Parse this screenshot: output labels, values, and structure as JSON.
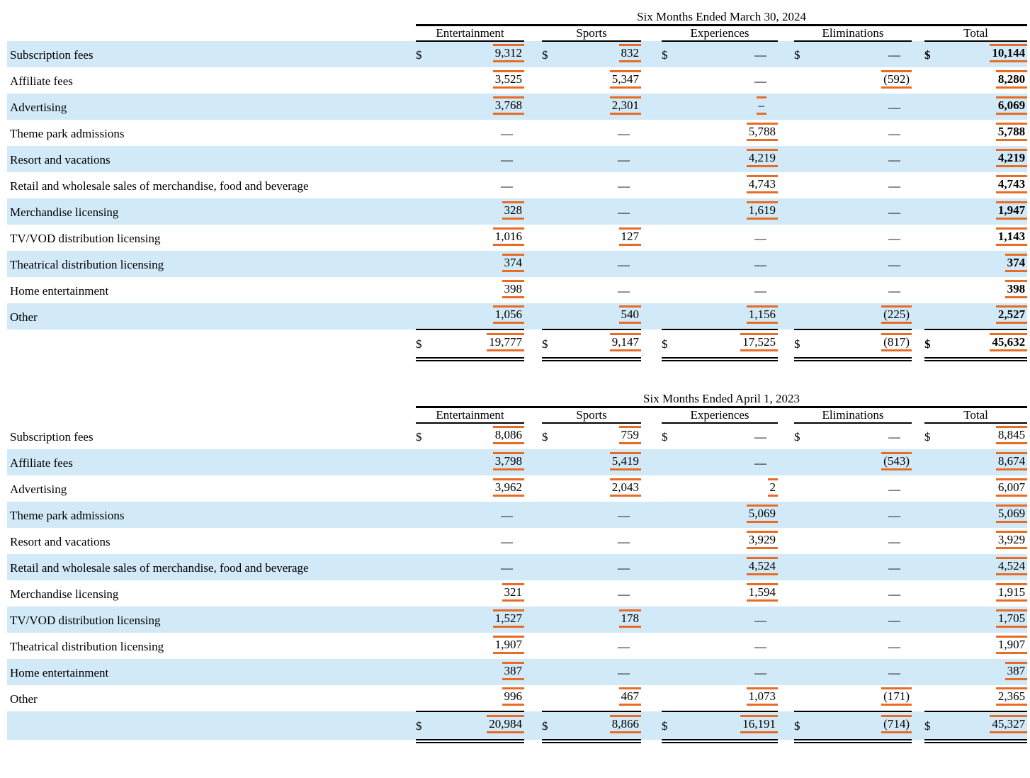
{
  "colors": {
    "stripe_blue": "#d2e9f7",
    "tag_orange": "#e86c25",
    "rule_black": "#000000"
  },
  "column_headers": [
    "Entertainment",
    "Sports",
    "Experiences",
    "Eliminations",
    "Total"
  ],
  "tables": [
    {
      "title": "Six Months Ended March 30, 2024",
      "stripe_phase": 0,
      "total_striped": false,
      "rows": [
        {
          "label": "Subscription fees",
          "cells": [
            {
              "dollar": "$",
              "value": "9,312",
              "tagged": true
            },
            {
              "dollar": "$",
              "value": "832",
              "tagged": true
            },
            {
              "dollar": "$",
              "value": "—",
              "dash": true
            },
            {
              "dollar": "$",
              "value": "—",
              "dash": true
            },
            {
              "dollar": "$",
              "value": "10,144",
              "tagged": true,
              "bold": true
            }
          ]
        },
        {
          "label": "Affiliate fees",
          "cells": [
            {
              "value": "3,525",
              "tagged": true
            },
            {
              "value": "5,347",
              "tagged": true
            },
            {
              "value": "—",
              "dash": true
            },
            {
              "value": "(592)",
              "tagged": true
            },
            {
              "value": "8,280",
              "tagged": true,
              "bold": true
            }
          ]
        },
        {
          "label": "Advertising",
          "cells": [
            {
              "value": "3,768",
              "tagged": true
            },
            {
              "value": "2,301",
              "tagged": true
            },
            {
              "value": "–",
              "tagged": true,
              "dash": true
            },
            {
              "value": "—",
              "dash": true
            },
            {
              "value": "6,069",
              "tagged": true,
              "bold": true
            }
          ]
        },
        {
          "label": "Theme park admissions",
          "cells": [
            {
              "value": "—",
              "dash": true
            },
            {
              "value": "—",
              "dash": true
            },
            {
              "value": "5,788",
              "tagged": true
            },
            {
              "value": "—",
              "dash": true
            },
            {
              "value": "5,788",
              "tagged": true,
              "bold": true
            }
          ]
        },
        {
          "label": "Resort and vacations",
          "cells": [
            {
              "value": "—",
              "dash": true
            },
            {
              "value": "—",
              "dash": true
            },
            {
              "value": "4,219",
              "tagged": true
            },
            {
              "value": "—",
              "dash": true
            },
            {
              "value": "4,219",
              "tagged": true,
              "bold": true
            }
          ]
        },
        {
          "label": "Retail and wholesale sales of merchandise, food and beverage",
          "cells": [
            {
              "value": "—",
              "dash": true
            },
            {
              "value": "—",
              "dash": true
            },
            {
              "value": "4,743",
              "tagged": true
            },
            {
              "value": "—",
              "dash": true
            },
            {
              "value": "4,743",
              "tagged": true,
              "bold": true
            }
          ]
        },
        {
          "label": "Merchandise licensing",
          "cells": [
            {
              "value": "328",
              "tagged": true
            },
            {
              "value": "—",
              "dash": true
            },
            {
              "value": "1,619",
              "tagged": true
            },
            {
              "value": "—",
              "dash": true
            },
            {
              "value": "1,947",
              "tagged": true,
              "bold": true
            }
          ]
        },
        {
          "label": "TV/VOD distribution licensing",
          "cells": [
            {
              "value": "1,016",
              "tagged": true
            },
            {
              "value": "127",
              "tagged": true
            },
            {
              "value": "—",
              "dash": true
            },
            {
              "value": "—",
              "dash": true
            },
            {
              "value": "1,143",
              "tagged": true,
              "bold": true
            }
          ]
        },
        {
          "label": "Theatrical distribution licensing",
          "cells": [
            {
              "value": "374",
              "tagged": true
            },
            {
              "value": "—",
              "dash": true
            },
            {
              "value": "—",
              "dash": true
            },
            {
              "value": "—",
              "dash": true
            },
            {
              "value": "374",
              "tagged": true,
              "bold": true
            }
          ]
        },
        {
          "label": "Home entertainment",
          "cells": [
            {
              "value": "398",
              "tagged": true
            },
            {
              "value": "—",
              "dash": true
            },
            {
              "value": "—",
              "dash": true
            },
            {
              "value": "—",
              "dash": true
            },
            {
              "value": "398",
              "tagged": true,
              "bold": true
            }
          ]
        },
        {
          "label": "Other",
          "cells": [
            {
              "value": "1,056",
              "tagged": true
            },
            {
              "value": "540",
              "tagged": true
            },
            {
              "value": "1,156",
              "tagged": true
            },
            {
              "value": "(225)",
              "tagged": true
            },
            {
              "value": "2,527",
              "tagged": true,
              "bold": true
            }
          ]
        }
      ],
      "total_row": {
        "cells": [
          {
            "dollar": "$",
            "value": "19,777",
            "tagged": true
          },
          {
            "dollar": "$",
            "value": "9,147",
            "tagged": true
          },
          {
            "dollar": "$",
            "value": "17,525",
            "tagged": true
          },
          {
            "dollar": "$",
            "value": "(817)",
            "tagged": true
          },
          {
            "dollar": "$",
            "value": "45,632",
            "tagged": true,
            "bold": true
          }
        ]
      }
    },
    {
      "title": "Six Months Ended April 1, 2023",
      "stripe_phase": 1,
      "total_striped": true,
      "rows": [
        {
          "label": "Subscription fees",
          "cells": [
            {
              "dollar": "$",
              "value": "8,086",
              "tagged": true
            },
            {
              "dollar": "$",
              "value": "759",
              "tagged": true
            },
            {
              "dollar": "$",
              "value": "—",
              "dash": true
            },
            {
              "dollar": "$",
              "value": "—",
              "dash": true
            },
            {
              "dollar": "$",
              "value": "8,845",
              "tagged": true
            }
          ]
        },
        {
          "label": "Affiliate fees",
          "cells": [
            {
              "value": "3,798",
              "tagged": true
            },
            {
              "value": "5,419",
              "tagged": true
            },
            {
              "value": "—",
              "dash": true
            },
            {
              "value": "(543)",
              "tagged": true
            },
            {
              "value": "8,674",
              "tagged": true
            }
          ]
        },
        {
          "label": "Advertising",
          "cells": [
            {
              "value": "3,962",
              "tagged": true
            },
            {
              "value": "2,043",
              "tagged": true
            },
            {
              "value": "2",
              "tagged": true
            },
            {
              "value": "—",
              "dash": true
            },
            {
              "value": "6,007",
              "tagged": true
            }
          ]
        },
        {
          "label": "Theme park admissions",
          "cells": [
            {
              "value": "—",
              "dash": true
            },
            {
              "value": "—",
              "dash": true
            },
            {
              "value": "5,069",
              "tagged": true
            },
            {
              "value": "—",
              "dash": true
            },
            {
              "value": "5,069",
              "tagged": true
            }
          ]
        },
        {
          "label": "Resort and vacations",
          "cells": [
            {
              "value": "—",
              "dash": true
            },
            {
              "value": "—",
              "dash": true
            },
            {
              "value": "3,929",
              "tagged": true
            },
            {
              "value": "—",
              "dash": true
            },
            {
              "value": "3,929",
              "tagged": true
            }
          ]
        },
        {
          "label": "Retail and wholesale sales of merchandise, food and beverage",
          "cells": [
            {
              "value": "—",
              "dash": true
            },
            {
              "value": "—",
              "dash": true
            },
            {
              "value": "4,524",
              "tagged": true
            },
            {
              "value": "—",
              "dash": true
            },
            {
              "value": "4,524",
              "tagged": true
            }
          ]
        },
        {
          "label": "Merchandise licensing",
          "cells": [
            {
              "value": "321",
              "tagged": true
            },
            {
              "value": "—",
              "dash": true
            },
            {
              "value": "1,594",
              "tagged": true
            },
            {
              "value": "—",
              "dash": true
            },
            {
              "value": "1,915",
              "tagged": true
            }
          ]
        },
        {
          "label": "TV/VOD distribution licensing",
          "cells": [
            {
              "value": "1,527",
              "tagged": true
            },
            {
              "value": "178",
              "tagged": true
            },
            {
              "value": "—",
              "dash": true
            },
            {
              "value": "—",
              "dash": true
            },
            {
              "value": "1,705",
              "tagged": true
            }
          ]
        },
        {
          "label": "Theatrical distribution licensing",
          "cells": [
            {
              "value": "1,907",
              "tagged": true
            },
            {
              "value": "—",
              "dash": true
            },
            {
              "value": "—",
              "dash": true
            },
            {
              "value": "—",
              "dash": true
            },
            {
              "value": "1,907",
              "tagged": true
            }
          ]
        },
        {
          "label": "Home entertainment",
          "cells": [
            {
              "value": "387",
              "tagged": true
            },
            {
              "value": "—",
              "dash": true
            },
            {
              "value": "—",
              "dash": true
            },
            {
              "value": "—",
              "dash": true
            },
            {
              "value": "387",
              "tagged": true
            }
          ]
        },
        {
          "label": "Other",
          "cells": [
            {
              "value": "996",
              "tagged": true
            },
            {
              "value": "467",
              "tagged": true
            },
            {
              "value": "1,073",
              "tagged": true
            },
            {
              "value": "(171)",
              "tagged": true
            },
            {
              "value": "2,365",
              "tagged": true
            }
          ]
        }
      ],
      "total_row": {
        "cells": [
          {
            "dollar": "$",
            "value": "20,984",
            "tagged": true
          },
          {
            "dollar": "$",
            "value": "8,866",
            "tagged": true
          },
          {
            "dollar": "$",
            "value": "16,191",
            "tagged": true
          },
          {
            "dollar": "$",
            "value": "(714)",
            "tagged": true
          },
          {
            "dollar": "$",
            "value": "45,327",
            "tagged": true
          }
        ]
      }
    }
  ]
}
